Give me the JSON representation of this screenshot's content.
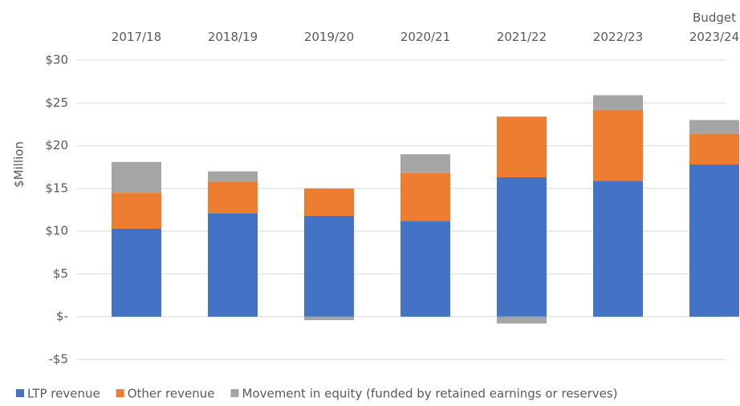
{
  "chart_data": {
    "type": "stacked_bar",
    "categories": [
      "2017/18",
      "2018/19",
      "2019/20",
      "2020/21",
      "2021/22",
      "2022/23",
      "Budget\n2023/24"
    ],
    "series": [
      {
        "name": "LTP revenue",
        "color": "#4472c4",
        "values": [
          10.3,
          12.1,
          11.8,
          11.2,
          16.3,
          15.9,
          17.8
        ]
      },
      {
        "name": "Other revenue",
        "color": "#ed7d31",
        "values": [
          4.2,
          3.7,
          3.2,
          5.6,
          7.1,
          8.3,
          3.6
        ]
      },
      {
        "name": "Movement in equity (funded by retained earnings or reserves)",
        "color": "#a5a5a5",
        "values": [
          3.6,
          1.2,
          -0.4,
          2.2,
          -0.8,
          1.7,
          1.6
        ]
      }
    ],
    "y_label": "$Million",
    "ylim": [
      -5,
      30
    ],
    "yticks": [
      {
        "value": -5,
        "label": "-$5"
      },
      {
        "value": 0,
        "label": "$-"
      },
      {
        "value": 5,
        "label": "$5"
      },
      {
        "value": 10,
        "label": "$10"
      },
      {
        "value": 15,
        "label": "$15"
      },
      {
        "value": 20,
        "label": "$20"
      },
      {
        "value": 25,
        "label": "$25"
      },
      {
        "value": 30,
        "label": "$30"
      }
    ],
    "grid": true,
    "legend": "bottom"
  }
}
